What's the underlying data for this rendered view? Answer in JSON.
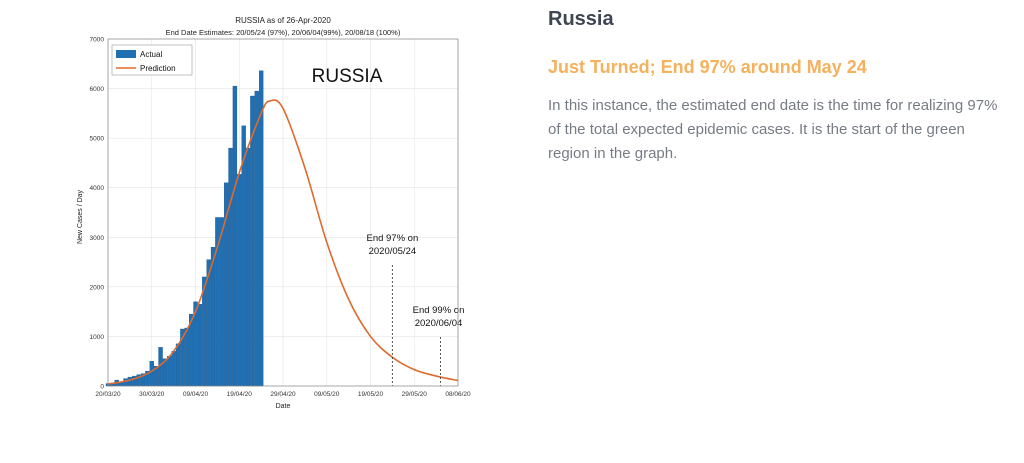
{
  "info": {
    "country": "Russia",
    "subtitle": "Just Turned; End 97% around May 24",
    "description": "In this instance, the estimated end date is the time for realizing 97% of the total expected epidemic cases. It is the start of the green region in the graph."
  },
  "chart_data": {
    "type": "bar",
    "title": "RUSSIA as of 26-Apr-2020",
    "subtitle": "End Date Estimates: 20/05/24 (97%), 20/06/04(99%), 20/08/18 (100%)",
    "watermark": "RUSSIA",
    "xlabel": "Date",
    "ylabel": "New Cases / Day",
    "ylim": [
      0,
      7000
    ],
    "yticks": [
      0,
      1000,
      2000,
      3000,
      4000,
      5000,
      6000,
      7000
    ],
    "x_start": "20/03/20",
    "x_end": "08/06/20",
    "xticks": [
      "20/03/20",
      "30/03/20",
      "09/04/20",
      "19/04/20",
      "29/04/20",
      "09/05/20",
      "19/05/20",
      "29/05/20",
      "08/06/20"
    ],
    "grid": true,
    "legend": "top-left",
    "colors": {
      "actual": "#1f6fb2",
      "prediction": "#e06a2c"
    },
    "series": [
      {
        "name": "Actual",
        "start": "20/03/20",
        "values": [
          50,
          60,
          120,
          70,
          150,
          180,
          200,
          230,
          250,
          300,
          500,
          400,
          780,
          550,
          600,
          700,
          850,
          1150,
          1170,
          1450,
          1700,
          1650,
          2200,
          2550,
          2800,
          3400,
          3400,
          4100,
          4800,
          6050,
          4270,
          5250,
          4800,
          5850,
          5950,
          6360
        ]
      },
      {
        "name": "Prediction",
        "type": "line",
        "x": [
          "20/03/20",
          "25/03/20",
          "30/03/20",
          "04/04/20",
          "09/04/20",
          "14/04/20",
          "19/04/20",
          "24/04/20",
          "26/04/20",
          "29/04/20",
          "04/05/20",
          "09/05/20",
          "14/05/20",
          "19/05/20",
          "24/05/20",
          "29/05/20",
          "03/06/20",
          "08/06/20"
        ],
        "y": [
          40,
          120,
          300,
          700,
          1500,
          2800,
          4300,
          5500,
          5750,
          5600,
          4400,
          2900,
          1750,
          1000,
          580,
          330,
          200,
          110
        ]
      }
    ],
    "annotations": [
      {
        "text": [
          "End 97% on",
          "2020/05/24"
        ],
        "x": "24/05/20"
      },
      {
        "text": [
          "End 99% on",
          "2020/06/04"
        ],
        "x": "04/06/20"
      }
    ]
  }
}
